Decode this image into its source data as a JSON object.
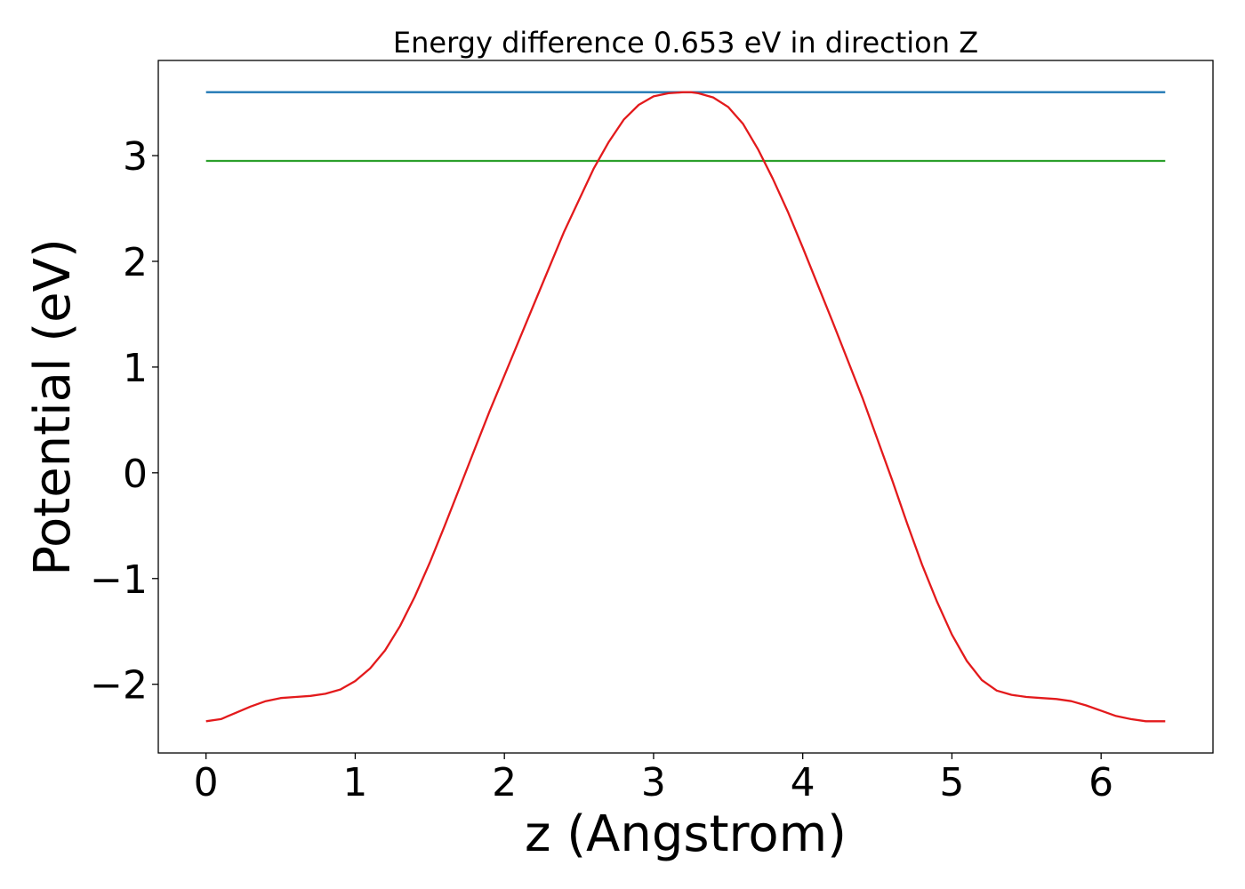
{
  "chart_data": {
    "type": "line",
    "title": "Energy difference 0.653 eV in direction Z",
    "xlabel": "z (Angstrom)",
    "ylabel": "Potential (eV)",
    "xlim": [
      -0.32,
      6.75
    ],
    "ylim": [
      -2.65,
      3.9
    ],
    "xticks": [
      0,
      1,
      2,
      3,
      4,
      5,
      6
    ],
    "yticks": [
      -2,
      -1,
      0,
      1,
      2,
      3
    ],
    "ytick_labels": [
      "−2",
      "−1",
      "0",
      "1",
      "2",
      "3"
    ],
    "grid": false,
    "series": [
      {
        "color": "#1f77b4",
        "x": [
          0.0,
          6.43
        ],
        "y": [
          3.6,
          3.6
        ]
      },
      {
        "color": "#2ca02c",
        "x": [
          0.0,
          6.43
        ],
        "y": [
          2.95,
          2.95
        ]
      },
      {
        "color": "#e31a1c",
        "x": [
          0.0,
          0.1,
          0.2,
          0.3,
          0.4,
          0.5,
          0.6,
          0.7,
          0.8,
          0.9,
          1.0,
          1.1,
          1.2,
          1.3,
          1.4,
          1.5,
          1.6,
          1.7,
          1.8,
          1.9,
          2.0,
          2.2,
          2.4,
          2.6,
          2.7,
          2.8,
          2.9,
          3.0,
          3.1,
          3.2,
          3.25,
          3.3,
          3.4,
          3.5,
          3.6,
          3.7,
          3.8,
          3.9,
          4.0,
          4.2,
          4.4,
          4.6,
          4.7,
          4.8,
          4.9,
          5.0,
          5.1,
          5.2,
          5.3,
          5.4,
          5.5,
          5.6,
          5.7,
          5.8,
          5.9,
          6.0,
          6.1,
          6.2,
          6.3,
          6.43
        ],
        "y": [
          -2.35,
          -2.33,
          -2.27,
          -2.21,
          -2.16,
          -2.13,
          -2.12,
          -2.11,
          -2.09,
          -2.05,
          -1.97,
          -1.85,
          -1.68,
          -1.45,
          -1.17,
          -0.85,
          -0.5,
          -0.14,
          0.22,
          0.58,
          0.92,
          1.6,
          2.28,
          2.88,
          3.13,
          3.34,
          3.48,
          3.56,
          3.59,
          3.6,
          3.6,
          3.59,
          3.55,
          3.46,
          3.3,
          3.06,
          2.78,
          2.47,
          2.13,
          1.43,
          0.71,
          -0.07,
          -0.48,
          -0.87,
          -1.22,
          -1.53,
          -1.78,
          -1.96,
          -2.06,
          -2.1,
          -2.12,
          -2.13,
          -2.14,
          -2.16,
          -2.2,
          -2.25,
          -2.3,
          -2.33,
          -2.35,
          -2.35
        ]
      }
    ]
  }
}
